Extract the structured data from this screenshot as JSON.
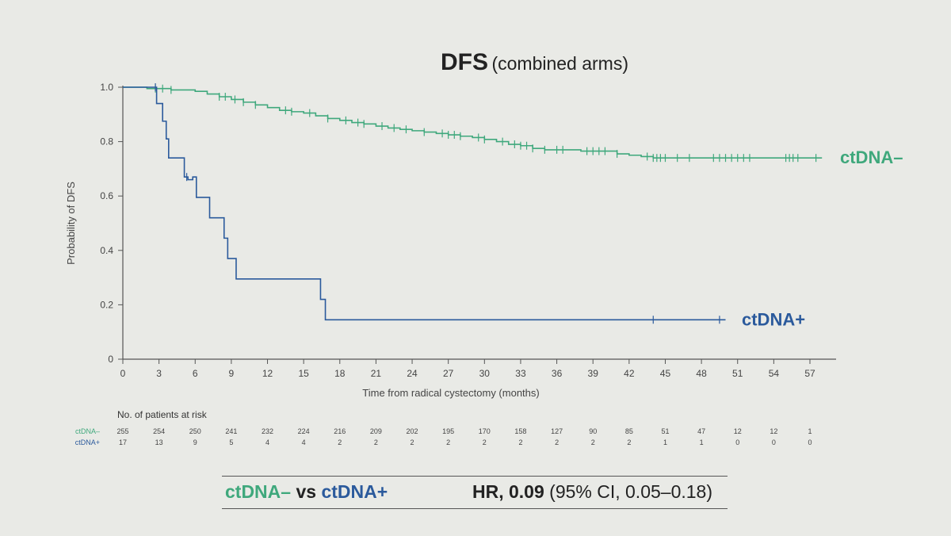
{
  "title": "DFS",
  "subtitle": "(combined arms)",
  "colors": {
    "ctdna_neg": "#3fa87c",
    "ctdna_pos": "#2b5a9c",
    "axis": "#555555"
  },
  "chart_data": {
    "type": "line",
    "xlabel": "Time from radical cystectomy (months)",
    "ylabel": "Probability of DFS",
    "xlim": [
      0,
      59
    ],
    "ylim": [
      0,
      1.0
    ],
    "xticks": [
      0,
      3,
      6,
      9,
      12,
      15,
      18,
      21,
      24,
      27,
      30,
      33,
      36,
      39,
      42,
      45,
      48,
      51,
      54,
      57
    ],
    "yticks": [
      0,
      0.2,
      0.4,
      0.6,
      0.8,
      1.0
    ],
    "ytick_labels": [
      "0",
      "0.2",
      "0.4",
      "0.6",
      "0.8",
      "1.0"
    ],
    "series": [
      {
        "name": "ctDNA–",
        "color": "#3fa87c",
        "step_x": [
          0,
          2,
          4,
          6,
          7,
          8,
          9,
          10,
          11,
          12,
          13,
          14,
          15,
          16,
          17,
          18,
          19,
          20,
          21,
          22,
          23,
          24,
          25,
          26,
          27,
          28,
          29,
          30,
          31,
          32,
          33,
          34,
          35,
          38,
          41,
          42,
          43,
          44,
          58
        ],
        "step_y": [
          1.0,
          0.995,
          0.99,
          0.985,
          0.975,
          0.965,
          0.955,
          0.945,
          0.935,
          0.925,
          0.915,
          0.91,
          0.905,
          0.895,
          0.885,
          0.878,
          0.87,
          0.865,
          0.857,
          0.85,
          0.845,
          0.84,
          0.835,
          0.83,
          0.825,
          0.82,
          0.815,
          0.808,
          0.8,
          0.79,
          0.785,
          0.775,
          0.77,
          0.765,
          0.755,
          0.75,
          0.745,
          0.74,
          0.74
        ],
        "censor_x": [
          2.7,
          3.3,
          4,
          8,
          8.5,
          9.3,
          10,
          11,
          13.5,
          14,
          15.5,
          17,
          18.5,
          19.5,
          20,
          21.5,
          22.5,
          23.5,
          25,
          26.5,
          27,
          27.5,
          28,
          29.5,
          30,
          31.5,
          32.5,
          33,
          33.5,
          34,
          35,
          36,
          36.5,
          38.5,
          39,
          39.5,
          40,
          41,
          43.5,
          44,
          44.3,
          44.6,
          45,
          46,
          47,
          49,
          49.5,
          50,
          50.5,
          51,
          51.5,
          52,
          55,
          55.3,
          55.6,
          56,
          57.5
        ]
      },
      {
        "name": "ctDNA+",
        "color": "#2b5a9c",
        "step_x": [
          0,
          2.8,
          3.3,
          3.6,
          3.8,
          5.1,
          5.4,
          5.8,
          6.1,
          7.2,
          8.4,
          8.7,
          9.4,
          16.4,
          16.8,
          50
        ],
        "step_y": [
          1.0,
          0.94,
          0.875,
          0.81,
          0.74,
          0.67,
          0.66,
          0.67,
          0.595,
          0.52,
          0.445,
          0.37,
          0.295,
          0.22,
          0.145,
          0.145
        ],
        "censor_x": [
          2.7,
          5.3,
          44,
          49.5
        ]
      }
    ],
    "series_labels": [
      "ctDNA–",
      "ctDNA+"
    ],
    "risk_table": {
      "title": "No. of patients at risk",
      "rows": [
        {
          "label": "ctDNA–",
          "values": [
            "255",
            "254",
            "250",
            "241",
            "232",
            "224",
            "216",
            "209",
            "202",
            "195",
            "170",
            "158",
            "127",
            "90",
            "85",
            "51",
            "47",
            "12",
            "12",
            "1"
          ]
        },
        {
          "label": "ctDNA+",
          "values": [
            "17",
            "13",
            "9",
            "5",
            "4",
            "4",
            "2",
            "2",
            "2",
            "2",
            "2",
            "2",
            "2",
            "2",
            "2",
            "1",
            "1",
            "0",
            "0",
            "0"
          ]
        }
      ]
    }
  },
  "hr_box": {
    "neg_label": "ctDNA–",
    "vs": "vs",
    "pos_label": "ctDNA+",
    "hr_label": "HR, 0.09",
    "ci": "(95% CI, 0.05–0.18)"
  }
}
